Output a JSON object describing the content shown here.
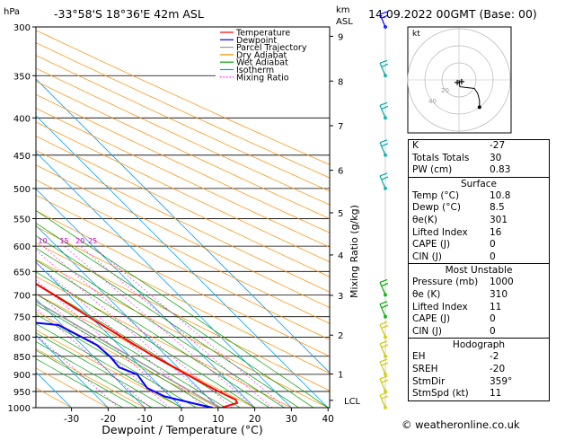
{
  "header": {
    "hpa_label": "hPa",
    "location": "-33°58'S  18°36'E  42m  ASL",
    "km_label": "km",
    "asl_label": "ASL",
    "datetime": "14.09.2022  00GMT  (Base: 00)"
  },
  "chart_data": [
    {
      "type": "line",
      "subtype": "skew-T log-p diagram",
      "xlabel": "Dewpoint / Temperature (°C)",
      "y2label": "Mixing Ratio (g/kg)",
      "x_ticks": [
        -30,
        -20,
        -10,
        0,
        10,
        20,
        30,
        40
      ],
      "pressure_ticks": [
        300,
        350,
        400,
        450,
        500,
        550,
        600,
        650,
        700,
        750,
        800,
        850,
        900,
        950,
        1000
      ],
      "km_ticks": [
        {
          "label": "9",
          "p": 309
        },
        {
          "label": "8",
          "p": 356
        },
        {
          "label": "7",
          "p": 410
        },
        {
          "label": "6",
          "p": 472
        },
        {
          "label": "5",
          "p": 540
        },
        {
          "label": "4",
          "p": 617
        },
        {
          "label": "3",
          "p": 701
        },
        {
          "label": "2",
          "p": 795
        },
        {
          "label": "1",
          "p": 899
        },
        {
          "label": "LCL",
          "p": 977
        }
      ],
      "mixing_ratio_labels": [
        "1",
        "2",
        "3",
        "4",
        "6",
        "8",
        "10",
        "15",
        "20",
        "25"
      ],
      "mixing_ratio_values": [
        1,
        2,
        3,
        4,
        6,
        8,
        10,
        15,
        20,
        25
      ],
      "legend": [
        {
          "label": "Temperature",
          "color": "#ff0000",
          "style": "solid"
        },
        {
          "label": "Dewpoint",
          "color": "#0000ff",
          "style": "solid"
        },
        {
          "label": "Parcel Trajectory",
          "color": "#999999",
          "style": "solid"
        },
        {
          "label": "Dry Adiabat",
          "color": "#ff8c00",
          "style": "solid"
        },
        {
          "label": "Wet Adiabat",
          "color": "#00a000",
          "style": "solid"
        },
        {
          "label": "Isotherm",
          "color": "#00a0ff",
          "style": "solid"
        },
        {
          "label": "Mixing Ratio",
          "color": "#ff00ff",
          "style": "dotted"
        }
      ],
      "series": [
        {
          "name": "Temperature",
          "color": "#ff0000",
          "points": [
            {
              "p": 1000,
              "t": 11.0
            },
            {
              "p": 985,
              "t": 16.5
            },
            {
              "p": 975,
              "t": 17.0
            },
            {
              "p": 950,
              "t": 14.5
            },
            {
              "p": 925,
              "t": 12.5
            },
            {
              "p": 900,
              "t": 10.5
            },
            {
              "p": 850,
              "t": 6.5
            },
            {
              "p": 800,
              "t": 3.0
            },
            {
              "p": 750,
              "t": -0.5
            },
            {
              "p": 700,
              "t": -4.0
            },
            {
              "p": 650,
              "t": -8.0
            },
            {
              "p": 600,
              "t": -12.0
            },
            {
              "p": 550,
              "t": -16.0
            },
            {
              "p": 500,
              "t": -21.0
            },
            {
              "p": 450,
              "t": -27.0
            },
            {
              "p": 400,
              "t": -34.0
            },
            {
              "p": 350,
              "t": -41.5
            },
            {
              "p": 300,
              "t": -50.0
            }
          ]
        },
        {
          "name": "Dewpoint",
          "color": "#0000ff",
          "points": [
            {
              "p": 1000,
              "t": 8.5
            },
            {
              "p": 990,
              "t": 5.5
            },
            {
              "p": 965,
              "t": -1.5
            },
            {
              "p": 940,
              "t": -4.0
            },
            {
              "p": 900,
              "t": -3.0
            },
            {
              "p": 880,
              "t": -6.0
            },
            {
              "p": 850,
              "t": -5.5
            },
            {
              "p": 820,
              "t": -6.0
            },
            {
              "p": 790,
              "t": -9.0
            },
            {
              "p": 770,
              "t": -11.0
            },
            {
              "p": 750,
              "t": -32.0
            },
            {
              "p": 700,
              "t": -26.0
            },
            {
              "p": 650,
              "t": -12.0
            },
            {
              "p": 630,
              "t": -21.0
            },
            {
              "p": 600,
              "t": -16.0
            },
            {
              "p": 580,
              "t": -13.0
            },
            {
              "p": 550,
              "t": -22.0
            },
            {
              "p": 540,
              "t": -11.0
            },
            {
              "p": 500,
              "t": -13.5
            },
            {
              "p": 450,
              "t": -20.0
            },
            {
              "p": 400,
              "t": -38.0
            },
            {
              "p": 370,
              "t": -41.0
            },
            {
              "p": 350,
              "t": -47.0
            },
            {
              "p": 320,
              "t": -52.0
            },
            {
              "p": 300,
              "t": -55.0
            }
          ]
        },
        {
          "name": "Parcel Trajectory",
          "color": "#999999",
          "points": [
            {
              "p": 1000,
              "t": 10.8
            },
            {
              "p": 977,
              "t": 8.8
            },
            {
              "p": 950,
              "t": 7.0
            },
            {
              "p": 900,
              "t": 3.5
            },
            {
              "p": 850,
              "t": 0.0
            },
            {
              "p": 800,
              "t": -3.8
            },
            {
              "p": 750,
              "t": -7.8
            },
            {
              "p": 700,
              "t": -12.0
            },
            {
              "p": 650,
              "t": -16.5
            },
            {
              "p": 600,
              "t": -21.5
            },
            {
              "p": 550,
              "t": -27.0
            },
            {
              "p": 500,
              "t": -33.0
            },
            {
              "p": 450,
              "t": -39.5
            },
            {
              "p": 400,
              "t": -47.0
            },
            {
              "p": 350,
              "t": -55.5
            },
            {
              "p": 300,
              "t": -65.0
            }
          ]
        }
      ]
    },
    {
      "type": "scatter",
      "subtype": "hodograph",
      "label": "kt",
      "ring_labels": [
        "20",
        "40"
      ],
      "trace_kt": [
        {
          "u": 0,
          "v": 0
        },
        {
          "u": 0.5,
          "v": -4
        },
        {
          "u": 9,
          "v": -5
        },
        {
          "u": 11,
          "v": -8
        },
        {
          "u": 12,
          "v": -12
        },
        {
          "u": 12,
          "v": -16
        }
      ],
      "storm_motion_kt": [
        {
          "u": -1,
          "v": -1.5
        },
        {
          "u": 1.5,
          "v": -1
        }
      ]
    }
  ],
  "wind_barbs": [
    {
      "p": 1000,
      "color": "#cccc00"
    },
    {
      "p": 950,
      "color": "#cccc00"
    },
    {
      "p": 900,
      "color": "#cccc00"
    },
    {
      "p": 850,
      "color": "#cccc00"
    },
    {
      "p": 800,
      "color": "#cccc00"
    },
    {
      "p": 750,
      "color": "#00aa00"
    },
    {
      "p": 700,
      "color": "#00aa00"
    },
    {
      "p": 500,
      "color": "#00aaaa"
    },
    {
      "p": 450,
      "color": "#00aaaa"
    },
    {
      "p": 400,
      "color": "#00aaaa"
    },
    {
      "p": 350,
      "color": "#00aaaa"
    },
    {
      "p": 300,
      "color": "#0000ff"
    }
  ],
  "stats": {
    "k_label": "K",
    "k_value": "-27",
    "tt_label": "Totals Totals",
    "tt_value": "30",
    "pw_label": "PW (cm)",
    "pw_value": "0.83"
  },
  "surface": {
    "title": "Surface",
    "rows": [
      {
        "label": "Temp (°C)",
        "value": "10.8"
      },
      {
        "label": "Dewp (°C)",
        "value": "8.5"
      },
      {
        "label": "θe(K)",
        "value": "301"
      },
      {
        "label": "Lifted Index",
        "value": "16"
      },
      {
        "label": "CAPE (J)",
        "value": "0"
      },
      {
        "label": "CIN (J)",
        "value": "0"
      }
    ]
  },
  "most_unstable": {
    "title": "Most Unstable",
    "rows": [
      {
        "label": "Pressure (mb)",
        "value": "1000"
      },
      {
        "label": "θe (K)",
        "value": "310"
      },
      {
        "label": "Lifted Index",
        "value": "11"
      },
      {
        "label": "CAPE (J)",
        "value": "0"
      },
      {
        "label": "CIN (J)",
        "value": "0"
      }
    ]
  },
  "hodograph_box": {
    "title": "Hodograph",
    "rows": [
      {
        "label": "EH",
        "value": "-2"
      },
      {
        "label": "SREH",
        "value": "-20"
      },
      {
        "label": "StmDir",
        "value": "359°"
      },
      {
        "label": "StmSpd (kt)",
        "value": "11"
      }
    ]
  },
  "copyright": "© weatheronline.co.uk"
}
